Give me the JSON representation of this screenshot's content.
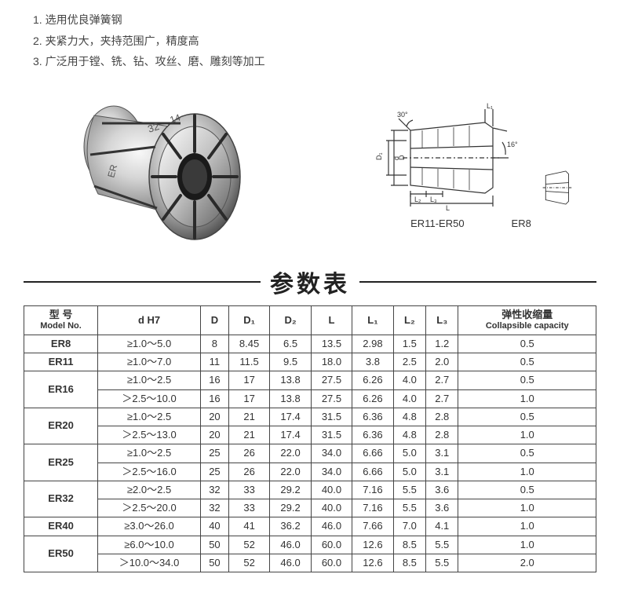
{
  "features": [
    "1. 选用优良弹簧钢",
    "2. 夹紧力大，夹持范围广，精度高",
    "3. 广泛用于镗、铣、钻、攻丝、磨、雕刻等加工"
  ],
  "diagram_labels": {
    "angle1": "30°",
    "angle2": "16°",
    "L": "L",
    "L1": "L₁",
    "L2": "L₂",
    "L3": "L₃",
    "D": "D",
    "D1": "D₁",
    "D2": "D₂",
    "d": "d",
    "main_label": "ER11-ER50",
    "small_label": "ER8"
  },
  "table_title": "参数表",
  "columns": [
    {
      "top": "型 号",
      "bottom": "Model No."
    },
    {
      "top": "d H7"
    },
    {
      "top": "D"
    },
    {
      "top": "D₁"
    },
    {
      "top": "D₂"
    },
    {
      "top": "L"
    },
    {
      "top": "L₁"
    },
    {
      "top": "L₂"
    },
    {
      "top": "L₃"
    },
    {
      "top": "弹性收缩量",
      "bottom": "Collapsible capacity"
    }
  ],
  "groups": [
    {
      "model": "ER8",
      "rows": [
        {
          "dH7": "≥1.0～5.0",
          "D": "8",
          "D1": "8.45",
          "D2": "6.5",
          "L": "13.5",
          "L1": "2.98",
          "L2": "1.5",
          "L3": "1.2",
          "cap": "0.5"
        }
      ]
    },
    {
      "model": "ER11",
      "rows": [
        {
          "dH7": "≥1.0～7.0",
          "D": "11",
          "D1": "11.5",
          "D2": "9.5",
          "L": "18.0",
          "L1": "3.8",
          "L2": "2.5",
          "L3": "2.0",
          "cap": "0.5"
        }
      ]
    },
    {
      "model": "ER16",
      "rows": [
        {
          "dH7": "≥1.0～2.5",
          "D": "16",
          "D1": "17",
          "D2": "13.8",
          "L": "27.5",
          "L1": "6.26",
          "L2": "4.0",
          "L3": "2.7",
          "cap": "0.5"
        },
        {
          "dH7": "＞2.5～10.0",
          "D": "16",
          "D1": "17",
          "D2": "13.8",
          "L": "27.5",
          "L1": "6.26",
          "L2": "4.0",
          "L3": "2.7",
          "cap": "1.0"
        }
      ]
    },
    {
      "model": "ER20",
      "rows": [
        {
          "dH7": "≥1.0～2.5",
          "D": "20",
          "D1": "21",
          "D2": "17.4",
          "L": "31.5",
          "L1": "6.36",
          "L2": "4.8",
          "L3": "2.8",
          "cap": "0.5"
        },
        {
          "dH7": "＞2.5～13.0",
          "D": "20",
          "D1": "21",
          "D2": "17.4",
          "L": "31.5",
          "L1": "6.36",
          "L2": "4.8",
          "L3": "2.8",
          "cap": "1.0"
        }
      ]
    },
    {
      "model": "ER25",
      "rows": [
        {
          "dH7": "≥1.0～2.5",
          "D": "25",
          "D1": "26",
          "D2": "22.0",
          "L": "34.0",
          "L1": "6.66",
          "L2": "5.0",
          "L3": "3.1",
          "cap": "0.5"
        },
        {
          "dH7": "＞2.5～16.0",
          "D": "25",
          "D1": "26",
          "D2": "22.0",
          "L": "34.0",
          "L1": "6.66",
          "L2": "5.0",
          "L3": "3.1",
          "cap": "1.0"
        }
      ]
    },
    {
      "model": "ER32",
      "rows": [
        {
          "dH7": "≥2.0～2.5",
          "D": "32",
          "D1": "33",
          "D2": "29.2",
          "L": "40.0",
          "L1": "7.16",
          "L2": "5.5",
          "L3": "3.6",
          "cap": "0.5"
        },
        {
          "dH7": "＞2.5～20.0",
          "D": "32",
          "D1": "33",
          "D2": "29.2",
          "L": "40.0",
          "L1": "7.16",
          "L2": "5.5",
          "L3": "3.6",
          "cap": "1.0"
        }
      ]
    },
    {
      "model": "ER40",
      "rows": [
        {
          "dH7": "≥3.0～26.0",
          "D": "40",
          "D1": "41",
          "D2": "36.2",
          "L": "46.0",
          "L1": "7.66",
          "L2": "7.0",
          "L3": "4.1",
          "cap": "1.0"
        }
      ]
    },
    {
      "model": "ER50",
      "rows": [
        {
          "dH7": "≥6.0～10.0",
          "D": "50",
          "D1": "52",
          "D2": "46.0",
          "L": "60.0",
          "L1": "12.6",
          "L2": "8.5",
          "L3": "5.5",
          "cap": "1.0"
        },
        {
          "dH7": "＞10.0～34.0",
          "D": "50",
          "D1": "52",
          "D2": "46.0",
          "L": "60.0",
          "L1": "12.6",
          "L2": "8.5",
          "L3": "5.5",
          "cap": "2.0"
        }
      ]
    }
  ],
  "colors": {
    "metal_light": "#e8e8e8",
    "metal_mid": "#b0b0b0",
    "metal_dark": "#5a5a5a",
    "line": "#333333"
  }
}
